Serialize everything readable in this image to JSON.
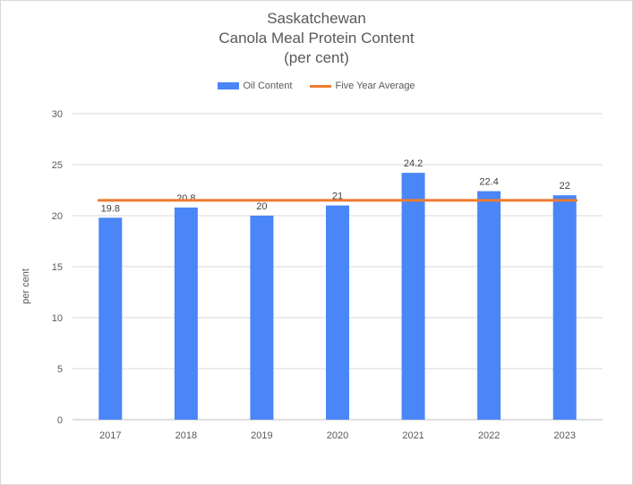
{
  "chart_data": {
    "type": "bar",
    "title_lines": [
      "Saskatchewan",
      "Canola Meal Protein Content",
      "(per cent)"
    ],
    "xlabel": "",
    "ylabel": "per cent",
    "categories": [
      "2017",
      "2018",
      "2019",
      "2020",
      "2021",
      "2022",
      "2023"
    ],
    "series": [
      {
        "name": "Oil Content",
        "type": "bar",
        "color": "#4a86f7",
        "values": [
          19.8,
          20.8,
          20,
          21,
          24.2,
          22.4,
          22
        ],
        "data_labels": [
          "19.8",
          "20.8",
          "20",
          "21",
          "24.2",
          "22.4",
          "22"
        ]
      },
      {
        "name": "Five Year Average",
        "type": "line",
        "color": "#ee7b2f",
        "values": [
          21.5,
          21.5,
          21.5,
          21.5,
          21.5,
          21.5,
          21.5
        ]
      }
    ],
    "ylim": [
      0,
      30
    ],
    "yticks": [
      "0",
      "5",
      "10",
      "15",
      "20",
      "25",
      "30"
    ],
    "grid": true,
    "legend_position": "top"
  }
}
